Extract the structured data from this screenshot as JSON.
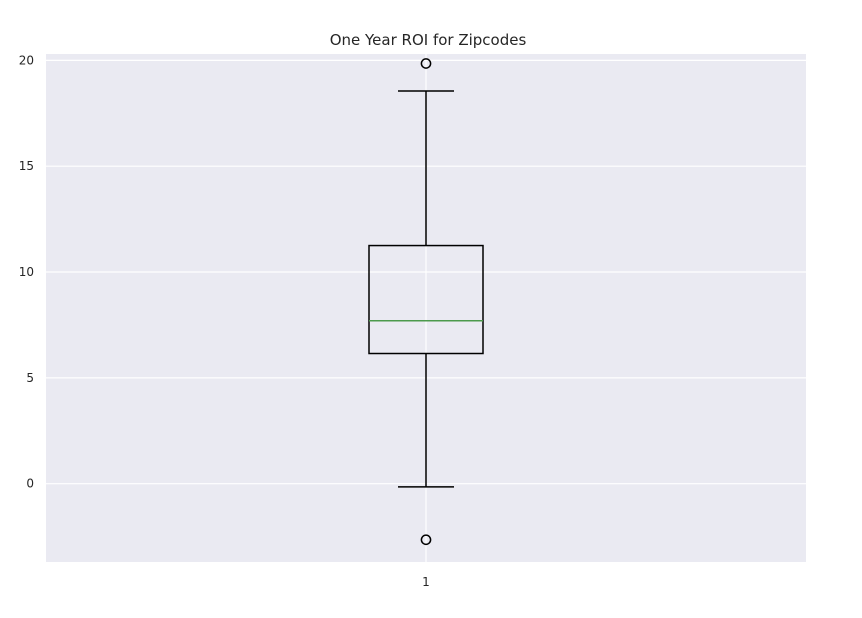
{
  "chart_data": {
    "type": "box",
    "title": "One Year ROI for Zipcodes",
    "xlabel": "",
    "ylabel": "",
    "categories": [
      "1"
    ],
    "ylim": [
      -3.7,
      20.3
    ],
    "yticks": [
      0,
      5,
      10,
      15,
      20
    ],
    "grid": true,
    "legend": "none",
    "colors": {
      "background": "#eaeaf2",
      "grid": "#ffffff",
      "box": "#000000",
      "median": "#4c9a4c"
    },
    "boxes": [
      {
        "category": "1",
        "whisker_low": -0.15,
        "q1": 6.15,
        "median": 7.7,
        "q3": 11.25,
        "whisker_high": 18.55,
        "outliers": [
          19.85,
          -2.65
        ]
      }
    ]
  }
}
